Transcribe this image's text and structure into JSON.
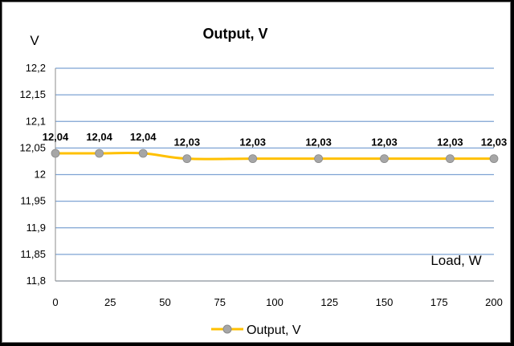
{
  "chart_data": {
    "type": "line",
    "title": "Output, V",
    "ylabel": "V",
    "xlabel": "Load, W",
    "x": [
      0,
      20,
      40,
      60,
      90,
      120,
      150,
      180,
      200
    ],
    "series": [
      {
        "name": "Output, V",
        "values": [
          12.04,
          12.04,
          12.04,
          12.03,
          12.03,
          12.03,
          12.03,
          12.03,
          12.03
        ]
      }
    ],
    "data_labels": [
      "12,04",
      "12,04",
      "12,04",
      "12,03",
      "12,03",
      "12,03",
      "12,03",
      "12,03",
      "12,03"
    ],
    "xlim": [
      0,
      200
    ],
    "ylim": [
      11.8,
      12.2
    ],
    "x_ticks": [
      0,
      25,
      50,
      75,
      100,
      125,
      150,
      175,
      200
    ],
    "x_tick_labels": [
      "0",
      "25",
      "50",
      "75",
      "100",
      "125",
      "150",
      "175",
      "200"
    ],
    "y_ticks": [
      11.8,
      11.85,
      11.9,
      11.95,
      12,
      12.05,
      12.1,
      12.15,
      12.2
    ],
    "y_tick_labels": [
      "11,8",
      "11,85",
      "11,9",
      "11,95",
      "12",
      "12,05",
      "12,1",
      "12,15",
      "12,2"
    ],
    "grid": "horizontal",
    "legend": "bottom",
    "colors": {
      "line": "#FFC000",
      "marker": "#A6A6A6",
      "grid": "#7EA3D3"
    }
  }
}
